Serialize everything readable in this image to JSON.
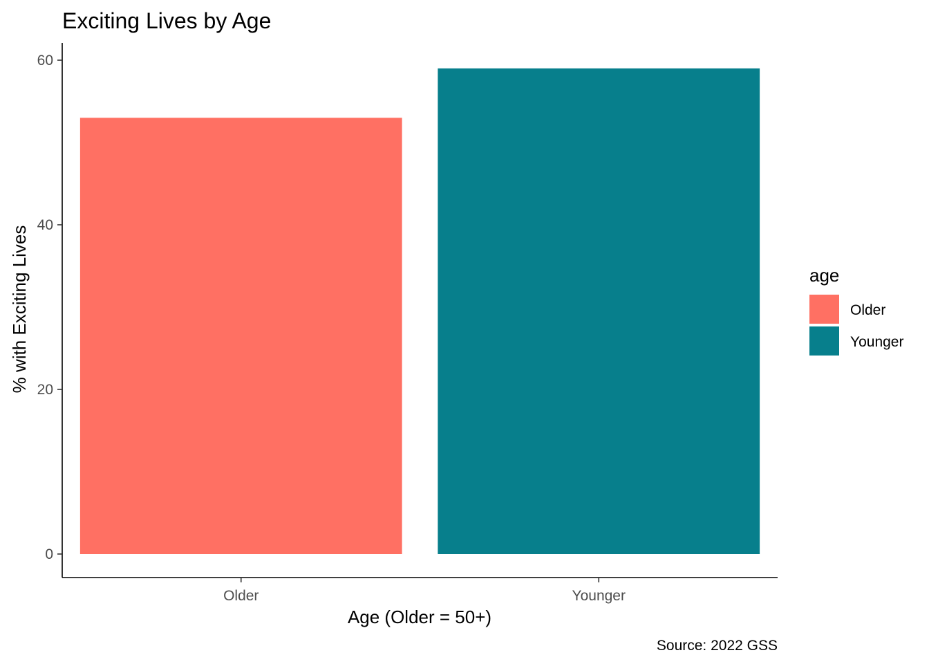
{
  "chart_data": {
    "type": "bar",
    "title": "Exciting Lives by Age",
    "xlabel": "Age (Older = 50+)",
    "ylabel": "% with Exciting Lives",
    "caption": "Source: 2022 GSS",
    "categories": [
      "Older",
      "Younger"
    ],
    "values": [
      53,
      59
    ],
    "colors": [
      "#FF7063",
      "#077F8C"
    ],
    "ylim": [
      0,
      60
    ],
    "yticks": [
      0,
      20,
      40,
      60
    ],
    "grid": false,
    "legend": {
      "title": "age",
      "position": "right",
      "items": [
        {
          "label": "Older",
          "color": "#FF7063"
        },
        {
          "label": "Younger",
          "color": "#077F8C"
        }
      ]
    }
  }
}
